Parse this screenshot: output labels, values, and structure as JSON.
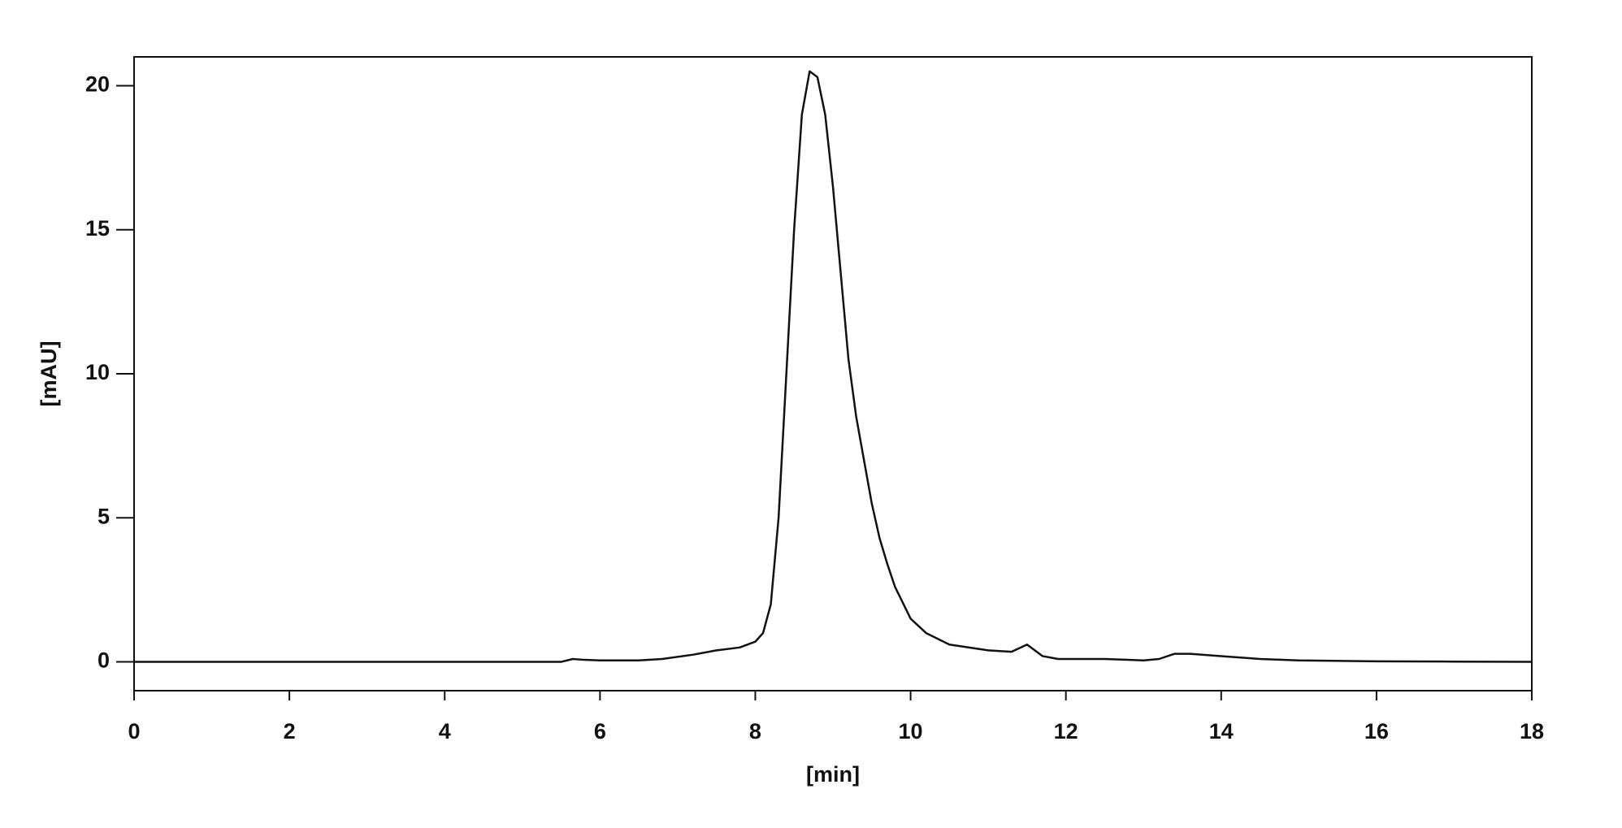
{
  "chart_data": {
    "type": "line",
    "x_label": "[min]",
    "y_label": "[mAU]",
    "x": [
      0,
      1,
      2,
      3,
      4,
      5,
      5.5,
      5.65,
      5.8,
      6,
      6.5,
      6.8,
      7.2,
      7.5,
      7.8,
      8.0,
      8.1,
      8.2,
      8.3,
      8.4,
      8.5,
      8.6,
      8.7,
      8.8,
      8.9,
      9.0,
      9.1,
      9.2,
      9.3,
      9.4,
      9.5,
      9.6,
      9.7,
      9.8,
      10.0,
      10.2,
      10.5,
      11.0,
      11.3,
      11.5,
      11.7,
      11.9,
      12.5,
      13.0,
      13.2,
      13.4,
      13.6,
      14,
      14.5,
      15,
      16,
      17,
      18
    ],
    "series": [
      {
        "color": "#111111",
        "values": [
          0,
          0,
          0,
          0,
          0,
          0,
          0,
          0.1,
          0.07,
          0.05,
          0.05,
          0.1,
          0.25,
          0.4,
          0.5,
          0.7,
          1.0,
          2.0,
          5.0,
          10,
          15,
          19,
          20.5,
          20.3,
          19,
          16.5,
          13.5,
          10.5,
          8.5,
          7.0,
          5.5,
          4.3,
          3.4,
          2.6,
          1.5,
          1.0,
          0.6,
          0.4,
          0.35,
          0.6,
          0.2,
          0.1,
          0.1,
          0.05,
          0.1,
          0.28,
          0.28,
          0.2,
          0.1,
          0.05,
          0.02,
          0.01,
          0
        ]
      }
    ],
    "xlim": [
      0,
      18
    ],
    "xticks": [
      0,
      2,
      4,
      6,
      8,
      10,
      12,
      14,
      16,
      18
    ],
    "ylim": [
      -1,
      21
    ],
    "yticks": [
      0,
      5,
      10,
      15,
      20
    ]
  }
}
